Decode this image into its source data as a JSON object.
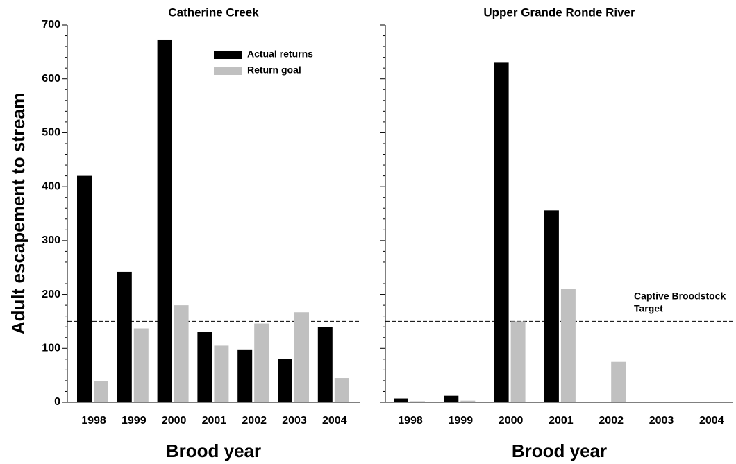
{
  "chart_data": [
    {
      "type": "bar",
      "title": "Catherine Creek",
      "ylabel": "Adult escapement to stream",
      "xlabel": "Brood year",
      "categories": [
        "1998",
        "1999",
        "2000",
        "2001",
        "2002",
        "2003",
        "2004"
      ],
      "series": [
        {
          "name": "Actual returns",
          "color": "#000000",
          "values": [
            420,
            242,
            673,
            130,
            98,
            80,
            140
          ]
        },
        {
          "name": "Return goal",
          "color": "#c0c0c0",
          "values": [
            39,
            137,
            180,
            105,
            146,
            167,
            45
          ]
        }
      ],
      "ylim": [
        0,
        700
      ],
      "yticks": [
        0,
        100,
        200,
        300,
        400,
        500,
        600,
        700
      ],
      "hline": 150,
      "legend": "top-right"
    },
    {
      "type": "bar",
      "title": "Upper Grande Ronde River",
      "xlabel": "Brood year",
      "categories": [
        "1998",
        "1999",
        "2000",
        "2001",
        "2002",
        "2003",
        "2004"
      ],
      "series": [
        {
          "name": "Actual returns",
          "color": "#000000",
          "values": [
            7,
            12,
            630,
            356,
            1,
            0,
            0
          ]
        },
        {
          "name": "Return goal",
          "color": "#c0c0c0",
          "values": [
            2,
            3,
            150,
            210,
            75,
            1,
            0
          ]
        }
      ],
      "ylim": [
        0,
        700
      ],
      "yticks": [
        0,
        100,
        200,
        300,
        400,
        500,
        600,
        700
      ],
      "hline": 150,
      "annotation": [
        "Captive Broodstock",
        "Target"
      ]
    }
  ]
}
